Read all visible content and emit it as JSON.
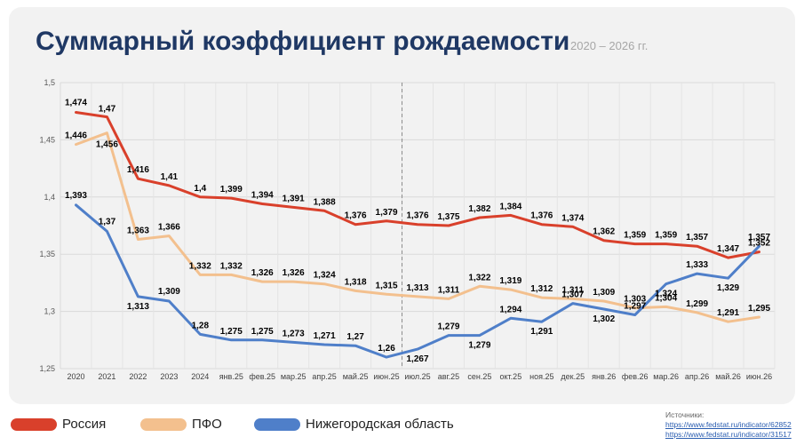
{
  "title": "Суммарный коэффициент рождаемости",
  "subtitle": "2020 – 2026 гг.",
  "legend": [
    {
      "label": "Россия",
      "color": "#d9402b"
    },
    {
      "label": "ПФО",
      "color": "#f3c08e"
    },
    {
      "label": "Нижегородская область",
      "color": "#4f7fc9"
    }
  ],
  "sources": {
    "label": "Источники:",
    "links": [
      "https://www.fedstat.ru/indicator/62852",
      "https://www.fedstat.ru/indicator/31517"
    ]
  },
  "chart_data": {
    "type": "line",
    "categories": [
      "2020",
      "2021",
      "2022",
      "2023",
      "2024",
      "янв.25",
      "фев.25",
      "мар.25",
      "апр.25",
      "май.25",
      "июн.25",
      "июл.25",
      "авг.25",
      "сен.25",
      "окт.25",
      "ноя.25",
      "дек.25",
      "янв.26",
      "фев.26",
      "мар.26",
      "апр.26",
      "май.26",
      "июн.26"
    ],
    "y_ticks": [
      "1,25",
      "1,3",
      "1,35",
      "1,4",
      "1,45",
      "1,5"
    ],
    "ylim": [
      1.25,
      1.5
    ],
    "grid": true,
    "divider_after_category": "июн.25",
    "series": [
      {
        "name": "Россия",
        "color": "#d9402b",
        "values": [
          1.474,
          1.47,
          1.416,
          1.41,
          1.4,
          1.399,
          1.394,
          1.391,
          1.388,
          1.376,
          1.379,
          1.376,
          1.375,
          1.382,
          1.384,
          1.376,
          1.374,
          1.362,
          1.359,
          1.359,
          1.357,
          1.347,
          1.352
        ],
        "labels": [
          "1,474",
          "1,47",
          "1,416",
          "1,41",
          "1,4",
          "1,399",
          "1,394",
          "1,391",
          "1,388",
          "1,376",
          "1,379",
          "1,376",
          "1,375",
          "1,382",
          "1,384",
          "1,376",
          "1,374",
          "1,362",
          "1,359",
          "1,359",
          "1,357",
          "1,347",
          "1,352"
        ]
      },
      {
        "name": "ПФО",
        "color": "#f3c08e",
        "values": [
          1.446,
          1.456,
          1.363,
          1.366,
          1.332,
          1.332,
          1.326,
          1.326,
          1.324,
          1.318,
          1.315,
          1.313,
          1.311,
          1.322,
          1.319,
          1.312,
          1.311,
          1.309,
          1.303,
          1.304,
          1.299,
          1.291,
          1.295
        ],
        "labels": [
          "1,446",
          "1,456",
          "1,363",
          "1,366",
          "1,332",
          "1,332",
          "1,326",
          "1,326",
          "1,324",
          "1,318",
          "1,315",
          "1,313",
          "1,311",
          "1,322",
          "1,319",
          "1,312",
          "1,311",
          "1,309",
          "1,303",
          "1,304",
          "1,299",
          "1,291",
          "1,295"
        ]
      },
      {
        "name": "Нижегородская область",
        "color": "#4f7fc9",
        "values": [
          1.393,
          1.37,
          1.313,
          1.309,
          1.28,
          1.275,
          1.275,
          1.273,
          1.271,
          1.27,
          1.26,
          1.267,
          1.279,
          1.279,
          1.294,
          1.291,
          1.307,
          1.302,
          1.297,
          1.324,
          1.333,
          1.329,
          1.357
        ],
        "labels": [
          "1,393",
          "1,37",
          "1,313",
          "1,309",
          "1,28",
          "1,275",
          "1,275",
          "1,273",
          "1,271",
          "1,27",
          "1,26",
          "1,267",
          "1,279",
          "1,279",
          "1,294",
          "1,291",
          "1,307",
          "1,302",
          "1,297",
          "1,324",
          "1,333",
          "1,329",
          "1,357"
        ]
      }
    ]
  }
}
